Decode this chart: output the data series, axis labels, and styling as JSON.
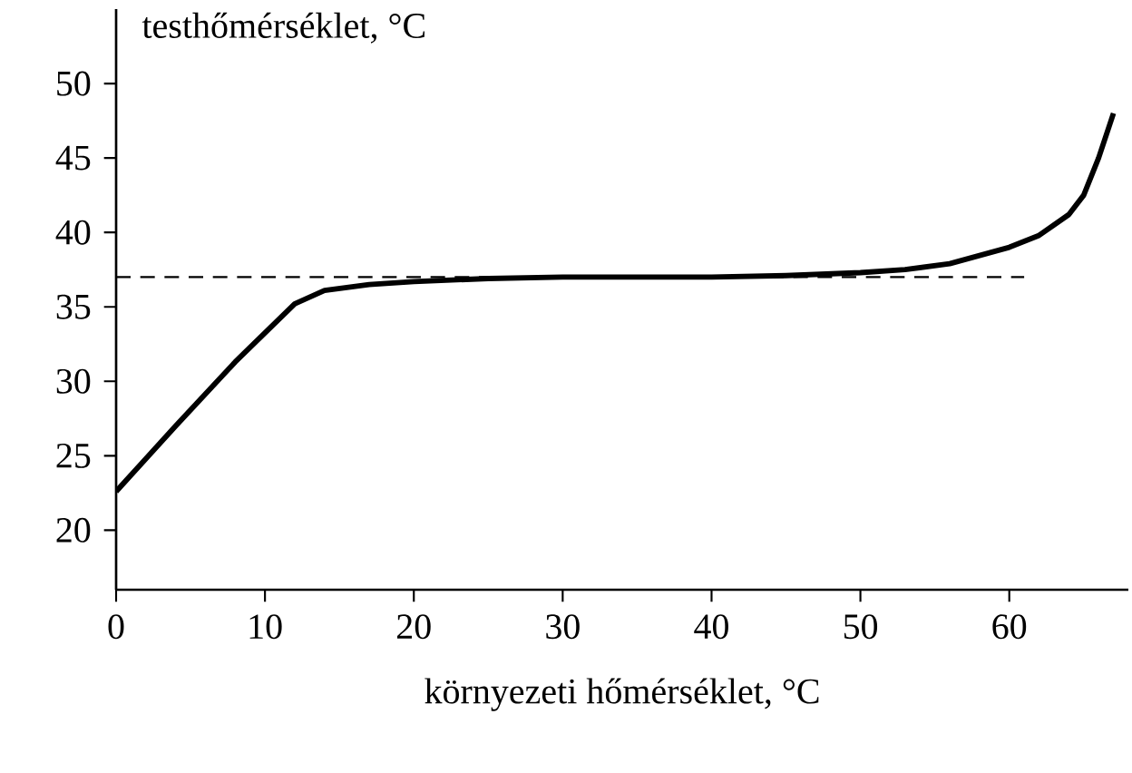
{
  "chart_data": {
    "type": "line",
    "xlabel": "környezeti hőmérséklet, °C",
    "ylabel": "testhőmérséklet, °C",
    "xlim": [
      0,
      68
    ],
    "ylim": [
      16,
      55
    ],
    "xticks": [
      0,
      10,
      20,
      30,
      40,
      50,
      60
    ],
    "yticks": [
      20,
      25,
      30,
      35,
      40,
      45,
      50
    ],
    "series": [
      {
        "color": "#000000",
        "line_style": "solid",
        "x": [
          0,
          4,
          8,
          12,
          14,
          17,
          20,
          25,
          30,
          40,
          45,
          50,
          53,
          56,
          60,
          62,
          64,
          65,
          66,
          67
        ],
        "values": [
          22.6,
          27,
          31.3,
          35.2,
          36.1,
          36.5,
          36.7,
          36.9,
          37,
          37,
          37.1,
          37.3,
          37.5,
          37.9,
          39,
          39.8,
          41.2,
          42.5,
          45,
          48
        ]
      },
      {
        "color": "#000000",
        "line_style": "dashed",
        "x": [
          0,
          61
        ],
        "values": [
          37,
          37
        ]
      }
    ]
  }
}
